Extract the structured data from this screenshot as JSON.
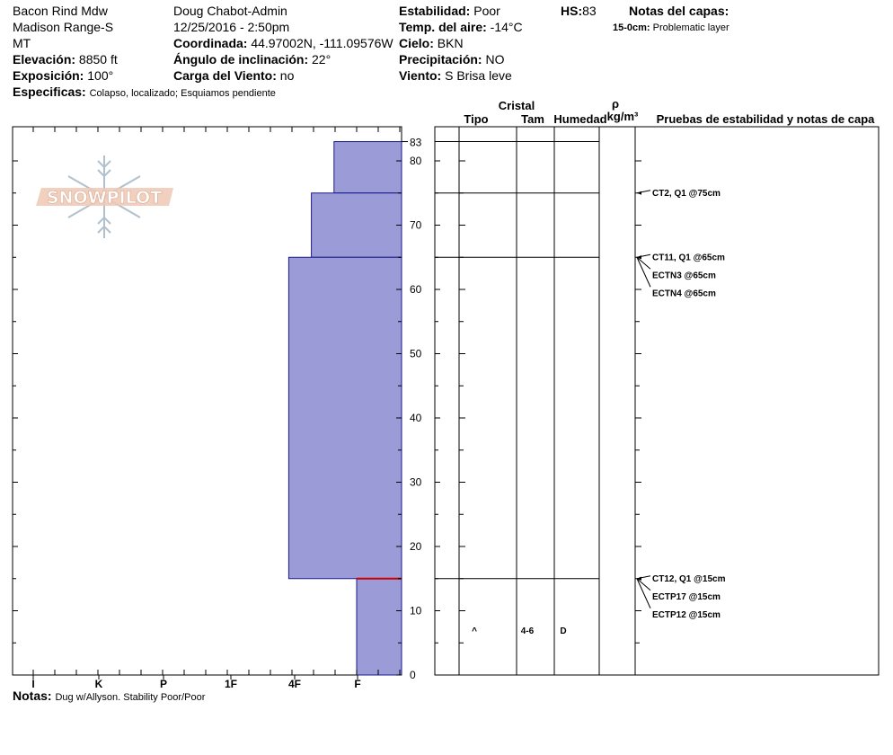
{
  "header": {
    "location": "Bacon Rind Mdw",
    "range": "Madison Range-S",
    "state": "MT",
    "elevation_label": "Elevación:",
    "elevation": "8850 ft",
    "aspect_label": "Exposición:",
    "aspect": "100°",
    "specifics_label": "Especificas:",
    "specifics": "Colapso, localizado; Esquiamos pendiente",
    "observer": "Doug Chabot-Admin",
    "datetime": "12/25/2016 - 2:50pm",
    "coord_label": "Coordinada:",
    "coord": "44.97002N, -111.09576W",
    "slope_label": "Ángulo de inclinación:",
    "slope": "22°",
    "wind_load_label": "Carga del Viento:",
    "wind_load": "no",
    "stability_label": "Estabilidad:",
    "stability": "Poor",
    "air_temp_label": "Temp. del aire:",
    "air_temp": "-14°C",
    "sky_label": "Cielo:",
    "sky": "BKN",
    "precip_label": "Precipitación:",
    "precip": "NO",
    "wind_label": "Viento:",
    "wind": "S Brisa leve",
    "hs_label": "HS:",
    "hs": "83",
    "layer_notes_title": "Notas del capas:",
    "layer_note_depth": "15-0cm:",
    "layer_note_text": "Problematic layer"
  },
  "logo_text": "SNOWPILOT",
  "columns": {
    "cristal": "Cristal",
    "tipo": "Tipo",
    "tam": "Tam",
    "humedad": "Humedad",
    "rho": "ρ",
    "density_unit": "kg/m³",
    "tests": "Pruebas de estabilidad y notas de capa"
  },
  "layer_details": [
    {
      "depth_mid": 7,
      "type": "^",
      "size": "4-6",
      "moisture": "D"
    }
  ],
  "notes_label": "Notas:",
  "notes": "Dug w/Allyson. Stability Poor/Poor",
  "chart_data": {
    "type": "bar",
    "subtype": "snow-hardness-profile",
    "y_range": [
      0,
      83
    ],
    "y_ticks": [
      0,
      10,
      20,
      30,
      40,
      50,
      60,
      70,
      80
    ],
    "y_top_label": "83",
    "hardness_scale": [
      "I",
      "K",
      "P",
      "1F",
      "4F",
      "F"
    ],
    "hardness_values": [
      0,
      1,
      2,
      3,
      4,
      5
    ],
    "hardness_x_max": 5.65,
    "layers": [
      {
        "bottom": 75,
        "top": 83,
        "hardness": 4.65
      },
      {
        "bottom": 65,
        "top": 75,
        "hardness": 4.3
      },
      {
        "bottom": 15,
        "top": 65,
        "hardness": 3.95
      },
      {
        "bottom": 0,
        "top": 15,
        "hardness": 5.0
      }
    ],
    "layer_boundaries": [
      83,
      75,
      65,
      15
    ],
    "problem_layer_depth": 15,
    "stability_tests": [
      {
        "depth": 75,
        "labels": [
          "CT2, Q1 @75cm"
        ]
      },
      {
        "depth": 65,
        "labels": [
          "CT11, Q1 @65cm",
          "ECTN3 @65cm",
          "ECTN4 @65cm"
        ]
      },
      {
        "depth": 15,
        "labels": [
          "CT12, Q1 @15cm",
          "ECTP17 @15cm",
          "ECTP12 @15cm"
        ]
      }
    ],
    "colors": {
      "layer_fill": "#9b9bd7",
      "layer_edge": "#1a1a8c",
      "problem_line": "#cc0000"
    }
  }
}
